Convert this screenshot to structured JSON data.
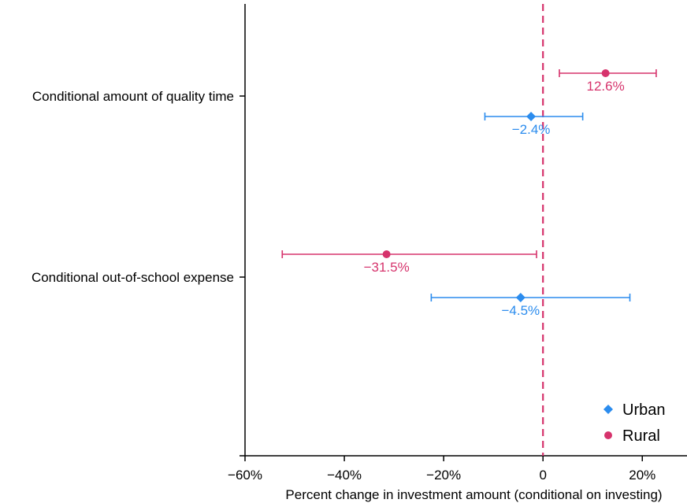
{
  "chart_data": {
    "type": "scatter",
    "subtype": "coefficient-plot-with-error-bars",
    "title": "",
    "xlabel": "Percent change in investment amount (conditional on investing)",
    "ylabel": "",
    "xlim": [
      -60,
      29
    ],
    "x_ticks": [
      -60,
      -40,
      -20,
      0,
      20
    ],
    "x_tick_labels": [
      "−60%",
      "−40%",
      "−20%",
      "0",
      "20%"
    ],
    "categories": [
      "Conditional amount of quality time",
      "Conditional out-of-school expense"
    ],
    "reference_line": {
      "x": 0,
      "style": "dashed",
      "color": "#d6336c"
    },
    "legend": {
      "placement": "bottom-right"
    },
    "grid": false,
    "series": [
      {
        "name": "Urban",
        "marker": "diamond",
        "color": "#2b8cee",
        "points": [
          {
            "category": "Conditional amount of quality time",
            "value": -2.4,
            "ci_low": -11.7,
            "ci_high": 8.0,
            "label": "−2.4%"
          },
          {
            "category": "Conditional out-of-school expense",
            "value": -4.5,
            "ci_low": -22.5,
            "ci_high": 17.5,
            "label": "−4.5%"
          }
        ]
      },
      {
        "name": "Rural",
        "marker": "circle",
        "color": "#d6336c",
        "points": [
          {
            "category": "Conditional amount of quality time",
            "value": 12.6,
            "ci_low": 3.3,
            "ci_high": 22.8,
            "label": "12.6%"
          },
          {
            "category": "Conditional out-of-school expense",
            "value": -31.5,
            "ci_low": -52.5,
            "ci_high": -1.3,
            "label": "−31.5%"
          }
        ]
      }
    ]
  }
}
